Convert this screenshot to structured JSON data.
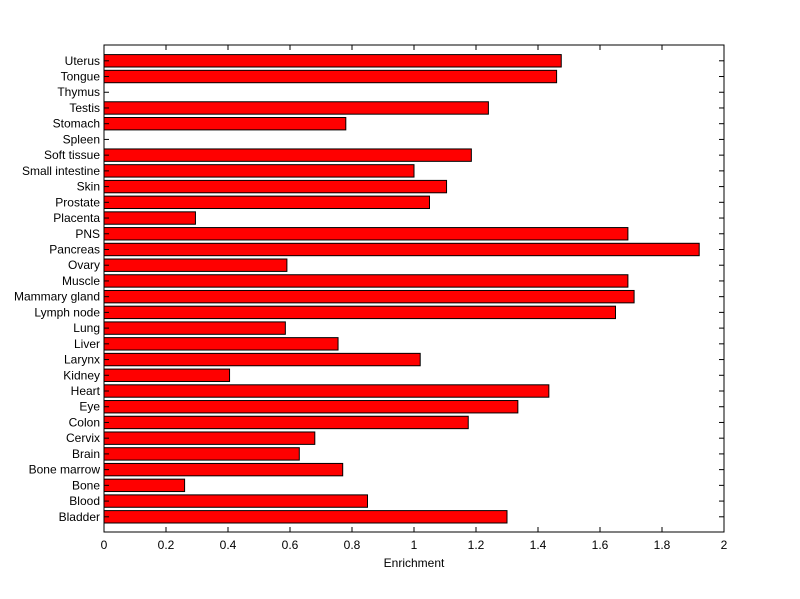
{
  "chart_data": {
    "type": "bar",
    "orientation": "horizontal",
    "title": "",
    "xlabel": "Enrichment",
    "ylabel": "",
    "xlim": [
      0,
      2
    ],
    "xticks": [
      0,
      0.2,
      0.4,
      0.6,
      0.8,
      1,
      1.2,
      1.4,
      1.6,
      1.8,
      2
    ],
    "xtick_labels": [
      "0",
      "0.2",
      "0.4",
      "0.6",
      "0.8",
      "1",
      "1.2",
      "1.4",
      "1.6",
      "1.8",
      "2"
    ],
    "grid": false,
    "bar_color": "#ff0000",
    "edge_color": "#000000",
    "categories": [
      "Uterus",
      "Tongue",
      "Thymus",
      "Testis",
      "Stomach",
      "Spleen",
      "Soft tissue",
      "Small intestine",
      "Skin",
      "Prostate",
      "Placenta",
      "PNS",
      "Pancreas",
      "Ovary",
      "Muscle",
      "Mammary gland",
      "Lymph node",
      "Lung",
      "Liver",
      "Larynx",
      "Kidney",
      "Heart",
      "Eye",
      "Colon",
      "Cervix",
      "Brain",
      "Bone marrow",
      "Bone",
      "Blood",
      "Bladder"
    ],
    "values": [
      1.475,
      1.46,
      0,
      1.24,
      0.78,
      0,
      1.185,
      1.0,
      1.105,
      1.05,
      0.295,
      1.69,
      1.92,
      0.59,
      1.69,
      1.71,
      1.65,
      0.585,
      0.755,
      1.02,
      0.405,
      1.435,
      1.335,
      1.175,
      0.68,
      0.63,
      0.77,
      0.26,
      0.85,
      1.3
    ]
  }
}
